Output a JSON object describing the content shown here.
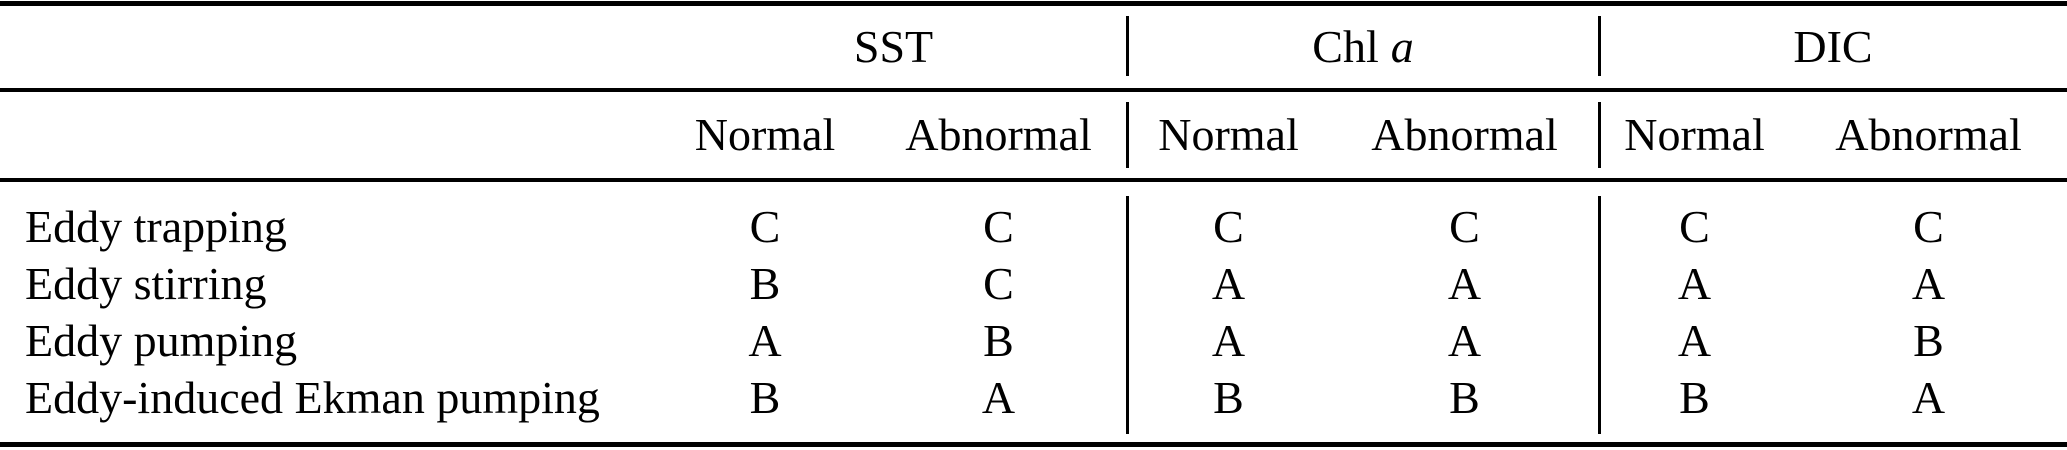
{
  "table": {
    "groups": [
      {
        "label": "SST"
      },
      {
        "label": "Chl",
        "italic": "a"
      },
      {
        "label": "DIC"
      }
    ],
    "subheaders": {
      "normal": "Normal",
      "abnormal": "Abnormal"
    },
    "rows": [
      {
        "label": "Eddy trapping",
        "sst": [
          "C",
          "C"
        ],
        "chl": [
          "C",
          "C"
        ],
        "dic": [
          "C",
          "C"
        ]
      },
      {
        "label": "Eddy stirring",
        "sst": [
          "B",
          "C"
        ],
        "chl": [
          "A",
          "A"
        ],
        "dic": [
          "A",
          "A"
        ]
      },
      {
        "label": "Eddy pumping",
        "sst": [
          "A",
          "B"
        ],
        "chl": [
          "A",
          "A"
        ],
        "dic": [
          "A",
          "B"
        ]
      },
      {
        "label": "Eddy-induced Ekman pumping",
        "sst": [
          "B",
          "A"
        ],
        "chl": [
          "B",
          "B"
        ],
        "dic": [
          "B",
          "A"
        ]
      }
    ]
  },
  "colors": {
    "text": "#000000",
    "rule": "#000000",
    "background": "#ffffff"
  }
}
